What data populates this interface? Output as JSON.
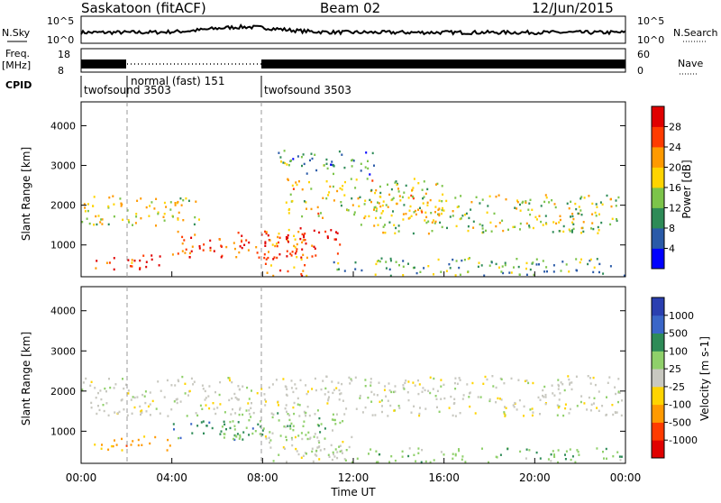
{
  "header": {
    "station": "Saskatoon (fitACF)",
    "beam": "Beam 02",
    "date": "12/Jun/2015"
  },
  "strip": {
    "nsky_label": "N.Sky",
    "nsky_ticks": [
      "10^5",
      "10^0"
    ],
    "nsearch_label": "N.Search",
    "nsearch_ticks": [
      "10^5",
      "10^0"
    ],
    "freq_label": "Freq.",
    "freq_unit": "[MHz]",
    "freq_ticks": [
      "18",
      "8"
    ],
    "nave_label": "Nave",
    "nave_ticks": [
      "60",
      "0"
    ],
    "cpid_label": "CPID",
    "cpid_segments": [
      {
        "label": "twofsound 3503",
        "start_h": 0,
        "end_h": 2
      },
      {
        "label": "normal (fast) 151",
        "start_h": 2,
        "end_h": 8
      },
      {
        "label": "twofsound 3503",
        "start_h": 8,
        "end_h": 24
      }
    ]
  },
  "chart_data": [
    {
      "type": "heatmap",
      "title": "",
      "ylabel": "Slant Range [km]",
      "xlabel": "",
      "xlim_hours": [
        0,
        24
      ],
      "ylim": [
        200,
        4600
      ],
      "yticks": [
        "1000",
        "2000",
        "3000",
        "4000"
      ],
      "colorbar": {
        "label": "Power [dB]",
        "range": [
          0,
          32
        ],
        "ticks": [
          "4",
          "8",
          "12",
          "16",
          "20",
          "24",
          "28"
        ],
        "colors": [
          "#0000ff",
          "#2a5aa8",
          "#2e8b57",
          "#7cc44a",
          "#ffd400",
          "#ff9a00",
          "#ff3b00",
          "#e00000"
        ]
      },
      "scatter_bands": [
        {
          "t0": 0.0,
          "t1": 5.2,
          "r0": 1500,
          "r1": 2300,
          "level": 0.55
        },
        {
          "t0": 0.5,
          "t1": 3.5,
          "r0": 400,
          "r1": 800,
          "level": 0.85
        },
        {
          "t0": 4.0,
          "t1": 11.5,
          "r0": 700,
          "r1": 1400,
          "level": 0.9
        },
        {
          "t0": 8.0,
          "t1": 10.0,
          "r0": 200,
          "r1": 1500,
          "level": 0.8
        },
        {
          "t0": 9.0,
          "t1": 16.0,
          "r0": 1700,
          "r1": 2700,
          "level": 0.55
        },
        {
          "t0": 12.0,
          "t1": 23.8,
          "r0": 1300,
          "r1": 2300,
          "level": 0.5
        },
        {
          "t0": 11.0,
          "t1": 24.0,
          "r0": 200,
          "r1": 700,
          "level": 0.35
        },
        {
          "t0": 8.5,
          "t1": 13.0,
          "r0": 2800,
          "r1": 3400,
          "level": 0.3
        }
      ]
    },
    {
      "type": "heatmap",
      "title": "",
      "ylabel": "Slant Range [km]",
      "xlabel": "Time UT",
      "xlim_hours": [
        0,
        24
      ],
      "ylim": [
        200,
        4600
      ],
      "xticks": [
        "00:00",
        "04:00",
        "08:00",
        "12:00",
        "16:00",
        "20:00",
        "00:00"
      ],
      "yticks": [
        "1000",
        "2000",
        "3000",
        "4000"
      ],
      "colorbar": {
        "label": "Velocity [m s-1]",
        "range_labels": [
          "-1000",
          "-500",
          "-100",
          "-25",
          "25",
          "100",
          "500",
          "1000"
        ],
        "ticks": [
          "1000",
          "500",
          "100",
          "25",
          "-25",
          "-100",
          "-500",
          "-1000"
        ],
        "colors": [
          "#2a3fb0",
          "#3a66c8",
          "#2e8b57",
          "#8fd06a",
          "#c8c8c0",
          "#ffd400",
          "#ff9a00",
          "#ff3b00",
          "#e00000"
        ]
      },
      "scatter_bands": [
        {
          "t0": 0.0,
          "t1": 24.0,
          "r0": 1400,
          "r1": 2400,
          "level": 4
        },
        {
          "t0": 0.5,
          "t1": 4.0,
          "r0": 550,
          "r1": 900,
          "level": 6
        },
        {
          "t0": 4.0,
          "t1": 8.0,
          "r0": 800,
          "r1": 1300,
          "level": 2
        },
        {
          "t0": 6.0,
          "t1": 11.5,
          "r0": 800,
          "r1": 1500,
          "level": 3
        },
        {
          "t0": 8.0,
          "t1": 12.0,
          "r0": 200,
          "r1": 900,
          "level": 4
        },
        {
          "t0": 11.0,
          "t1": 24.0,
          "r0": 200,
          "r1": 600,
          "level": 3
        }
      ]
    }
  ]
}
